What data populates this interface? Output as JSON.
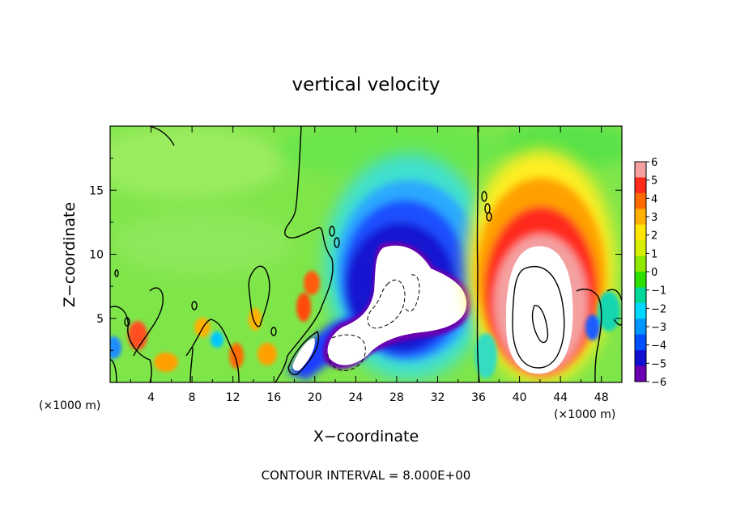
{
  "chart_data": {
    "type": "heatmap",
    "title": "vertical velocity",
    "xlabel": "X−coordinate",
    "ylabel": "Z−coordinate",
    "x_units_left": "(×1000 m)",
    "x_units_right": "(×1000 m)",
    "footer": "CONTOUR INTERVAL = 8.000E+00",
    "xlim": [
      0,
      50
    ],
    "ylim": [
      0,
      20
    ],
    "x_ticks": [
      4,
      8,
      12,
      16,
      20,
      24,
      28,
      32,
      36,
      40,
      44,
      48
    ],
    "x_tick_labels": [
      "4",
      "8",
      "12",
      "16",
      "20",
      "24",
      "28",
      "32",
      "36",
      "40",
      "44",
      "48"
    ],
    "y_ticks": [
      5,
      10,
      15
    ],
    "y_tick_labels": [
      "5",
      "10",
      "15"
    ],
    "colorbar": {
      "min": -6,
      "max": 6,
      "ticks": [
        6,
        5,
        4,
        3,
        2,
        1,
        0,
        -1,
        -2,
        -3,
        -4,
        -5,
        -6
      ],
      "tick_labels": [
        "6",
        "5",
        "4",
        "3",
        "2",
        "1",
        "0",
        "−1",
        "−2",
        "−3",
        "−4",
        "−5",
        "−6"
      ],
      "colors": [
        "#f4a0a0",
        "#ff2a1a",
        "#ff6a00",
        "#ffb000",
        "#ffe600",
        "#d8f000",
        "#8ee800",
        "#2ee000",
        "#00d89a",
        "#00d8ff",
        "#0096ff",
        "#0050ff",
        "#1010d0",
        "#6a00b0"
      ]
    },
    "features": [
      {
        "kind": "downdraft",
        "x": 27,
        "z": 8,
        "level": -6,
        "description_shape": "large blob"
      },
      {
        "kind": "updraft",
        "x": 42,
        "z": 6,
        "level": 6,
        "description_shape": "large plume"
      }
    ]
  }
}
